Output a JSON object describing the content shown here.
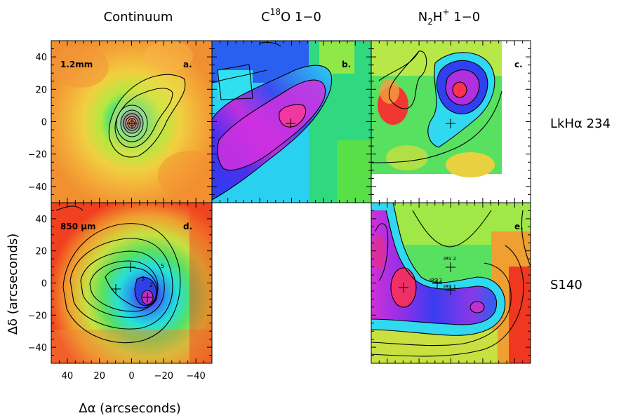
{
  "columns": [
    {
      "id": "continuum",
      "text": "Continuum"
    },
    {
      "id": "c18o",
      "pre": "C",
      "sup": "18",
      "post": "O 1−0"
    },
    {
      "id": "n2h",
      "pre": "N",
      "sub": "2",
      "mid": "H",
      "sup": "+",
      "post": " 1−0"
    }
  ],
  "rows": [
    {
      "id": "lkha234",
      "text": "LkHα 234"
    },
    {
      "id": "s140",
      "text": "S140"
    }
  ],
  "axes": {
    "xlabel": "Δα (arcseconds)",
    "ylabel": "Δδ (arcseconds)",
    "xticks": [
      40,
      20,
      0,
      -20,
      -40
    ],
    "yticks": [
      40,
      20,
      0,
      -20,
      -40
    ],
    "xlim": [
      50,
      -50
    ],
    "ylim": [
      -50,
      50
    ]
  },
  "panels": [
    {
      "id": "a",
      "row": 0,
      "col": 0,
      "letter": "a.",
      "label": "1.2mm",
      "colormap": "orange-peak"
    },
    {
      "id": "b",
      "row": 0,
      "col": 1,
      "letter": "b.",
      "label": "",
      "colormap": "rainbow-elongated"
    },
    {
      "id": "c",
      "row": 0,
      "col": 2,
      "letter": "c.",
      "label": "",
      "colormap": "rainbow-north-peak"
    },
    {
      "id": "d",
      "row": 1,
      "col": 0,
      "letter": "d.",
      "label": "850 μm",
      "colormap": "green-blue-core"
    },
    {
      "id": "e",
      "row": 1,
      "col": 2,
      "letter": "e.",
      "label": "",
      "colormap": "magenta-arc"
    }
  ],
  "s140_sources": [
    {
      "name": "IRS 2",
      "dx": -20,
      "dy": 10
    },
    {
      "name": "IRS 3",
      "dx": -16,
      "dy": -4
    },
    {
      "name": "IRS 1",
      "dx": -20,
      "dy": -6
    }
  ],
  "panel_d_marks": [
    {
      "text": "5"
    },
    {
      "text": "3"
    },
    {
      "text": "2"
    }
  ]
}
